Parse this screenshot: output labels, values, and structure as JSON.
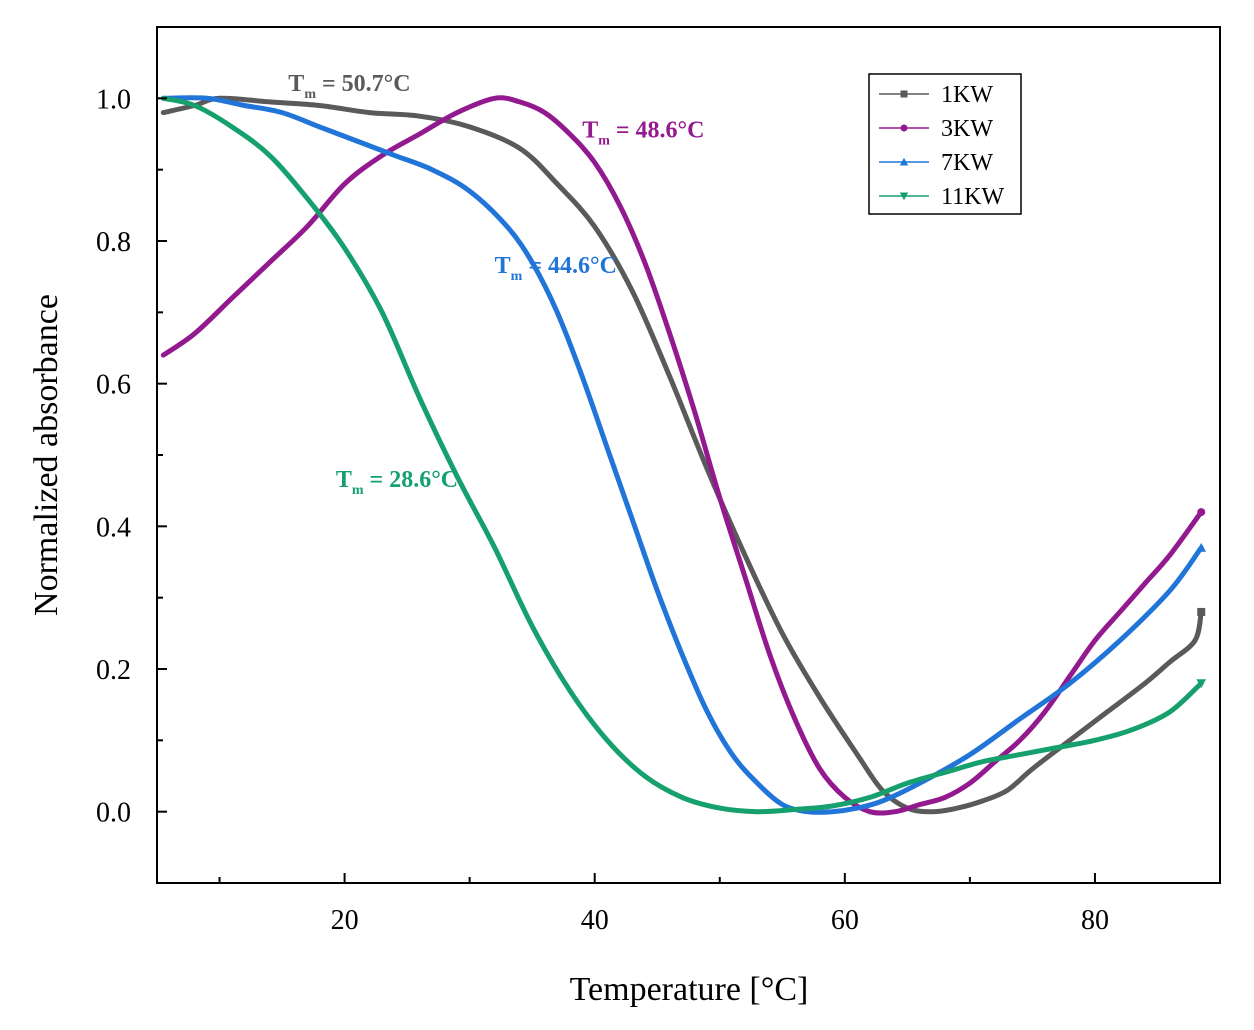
{
  "chart_data": {
    "type": "line",
    "title": "",
    "xlabel": "Temperature [°C]",
    "ylabel": "Normalized absorbance",
    "xlim": [
      5,
      90
    ],
    "ylim": [
      -0.1,
      1.1
    ],
    "x_ticks": [
      20,
      40,
      60,
      80
    ],
    "x_minor_ticks": [
      10,
      30,
      50,
      70,
      90
    ],
    "y_ticks": [
      0.0,
      0.2,
      0.4,
      0.6,
      0.8,
      1.0
    ],
    "y_tick_labels": [
      "0.0",
      "0.2",
      "0.4",
      "0.6",
      "0.8",
      "1.0"
    ],
    "y_minor_ticks": [
      -0.1,
      0.1,
      0.3,
      0.5,
      0.7,
      0.9,
      1.1
    ],
    "legend_position": "top-right",
    "series": [
      {
        "name": "1KW",
        "color": "#5a5a5a",
        "marker": "square",
        "x": [
          5.5,
          8,
          10,
          14,
          18,
          22,
          26,
          30,
          34,
          37,
          40,
          43,
          46,
          49,
          52,
          55,
          58,
          61,
          63,
          65,
          67,
          69,
          71,
          73,
          75,
          78,
          81,
          84,
          86,
          88,
          88.5
        ],
        "y": [
          0.98,
          0.99,
          1.0,
          0.995,
          0.99,
          0.98,
          0.975,
          0.96,
          0.93,
          0.88,
          0.82,
          0.73,
          0.61,
          0.48,
          0.36,
          0.25,
          0.16,
          0.08,
          0.03,
          0.005,
          0.0,
          0.005,
          0.015,
          0.03,
          0.06,
          0.1,
          0.14,
          0.18,
          0.21,
          0.24,
          0.28
        ]
      },
      {
        "name": "3KW",
        "color": "#93198f",
        "marker": "circle",
        "x": [
          5.5,
          8,
          11,
          14,
          17,
          20,
          23,
          26,
          29,
          32,
          34,
          36,
          38,
          40,
          42,
          44,
          46,
          48,
          50,
          52,
          54,
          56,
          58,
          60,
          62,
          64,
          66,
          68,
          70,
          72,
          74,
          76,
          78,
          80,
          82,
          84,
          86,
          88.5
        ],
        "y": [
          0.64,
          0.67,
          0.72,
          0.77,
          0.82,
          0.88,
          0.92,
          0.95,
          0.98,
          1.0,
          0.995,
          0.98,
          0.95,
          0.91,
          0.85,
          0.77,
          0.67,
          0.56,
          0.44,
          0.33,
          0.22,
          0.13,
          0.06,
          0.02,
          0.0,
          0.0,
          0.01,
          0.02,
          0.04,
          0.07,
          0.1,
          0.14,
          0.19,
          0.24,
          0.28,
          0.32,
          0.36,
          0.42
        ]
      },
      {
        "name": "7KW",
        "color": "#2175d9",
        "marker": "triangle",
        "x": [
          5.5,
          9,
          12,
          15,
          18,
          21,
          24,
          27,
          30,
          33,
          35,
          37,
          39,
          41,
          43,
          45,
          47,
          49,
          51,
          53,
          55,
          57,
          59,
          61,
          63,
          66,
          70,
          74,
          78,
          82,
          86,
          88.5
        ],
        "y": [
          1.0,
          1.0,
          0.99,
          0.98,
          0.96,
          0.94,
          0.92,
          0.9,
          0.87,
          0.82,
          0.77,
          0.7,
          0.61,
          0.51,
          0.41,
          0.31,
          0.22,
          0.14,
          0.08,
          0.04,
          0.01,
          0.0,
          0.0,
          0.005,
          0.015,
          0.04,
          0.08,
          0.13,
          0.18,
          0.24,
          0.31,
          0.37
        ]
      },
      {
        "name": "11KW",
        "color": "#16a06e",
        "marker": "triangle-down",
        "x": [
          5.5,
          8,
          11,
          14,
          17,
          20,
          23,
          26,
          29,
          32,
          35,
          38,
          41,
          44,
          47,
          50,
          53,
          56,
          59,
          62,
          65,
          68,
          71,
          74,
          77,
          80,
          83,
          86,
          88.5
        ],
        "y": [
          1.0,
          0.99,
          0.96,
          0.92,
          0.86,
          0.79,
          0.7,
          0.58,
          0.47,
          0.37,
          0.26,
          0.17,
          0.1,
          0.05,
          0.02,
          0.005,
          0.0,
          0.003,
          0.008,
          0.02,
          0.04,
          0.055,
          0.07,
          0.08,
          0.09,
          0.1,
          0.115,
          0.14,
          0.18
        ]
      }
    ],
    "annotations": [
      {
        "label": "Tm = 50.7°C",
        "text_main": "T",
        "text_sub": "m",
        "text_rest": " = 50.7°C",
        "color": "#5a5a5a",
        "x": 15.5,
        "y": 1.01
      },
      {
        "label": "Tm = 48.6°C",
        "text_main": "T",
        "text_sub": "m",
        "text_rest": " = 48.6°C",
        "color": "#93198f",
        "x": 39.0,
        "y": 0.945
      },
      {
        "label": "Tm = 44.6°C",
        "text_main": "T",
        "text_sub": "m",
        "text_rest": " = 44.6°C",
        "color": "#2175d9",
        "x": 32.0,
        "y": 0.755
      },
      {
        "label": "Tm = 28.6°C",
        "text_main": "T",
        "text_sub": "m",
        "text_rest": " = 28.6°C",
        "color": "#16a06e",
        "x": 19.3,
        "y": 0.455
      }
    ]
  }
}
